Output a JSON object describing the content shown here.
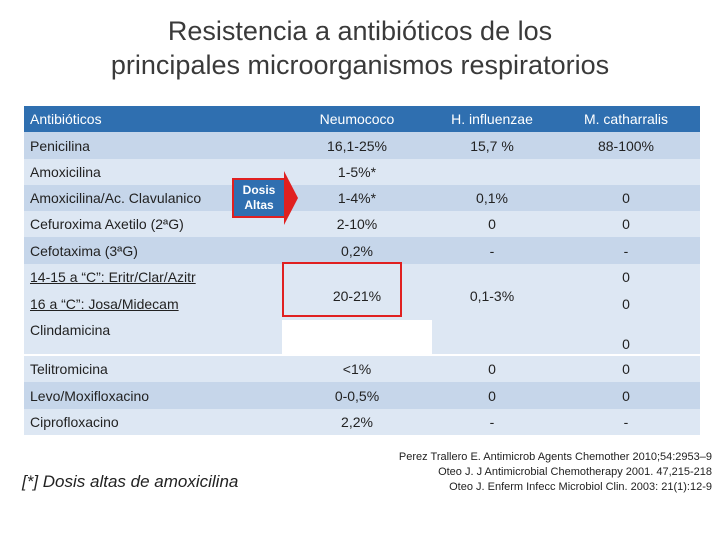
{
  "title": {
    "line1": "Resistencia a antibióticos de los",
    "line2": "principales microorganismos respiratorios"
  },
  "table": {
    "headers": [
      "Antibióticos",
      "Neumococo",
      "H. influenzae",
      "M. catharralis"
    ],
    "rows": {
      "penicilina": [
        "Penicilina",
        "16,1-25%",
        "15,7 %",
        "88-100%"
      ],
      "amoxicilina": [
        "Amoxicilina",
        "1-5%*"
      ],
      "amoxiclav": [
        "Amoxicilina/Ac. Clavulanico",
        "1-4%*",
        "0,1%",
        "0"
      ],
      "cefuroxima": [
        "Cefuroxima Axetilo (2ªG)",
        "2-10%",
        "0",
        "0"
      ],
      "cefotaxima": [
        "Cefotaxima (3ªG)",
        "0,2%",
        "-",
        "-"
      ],
      "macro14": [
        "14-15 a “C”: Eritr/Clar/Azitr",
        "0"
      ],
      "macro16": [
        "16 a “C”: Josa/Midecam",
        "0"
      ],
      "macro_shared": [
        "20-21%",
        "0,1-3%"
      ],
      "clindamicina": [
        "Clindamicina",
        "0"
      ],
      "telitromicina": [
        "Telitromicina",
        "<1%",
        "0",
        "0"
      ],
      "levo": [
        "Levo/Moxifloxacino",
        "0-0,5%",
        "0",
        "0"
      ],
      "cipro": [
        "Ciprofloxacino",
        "2,2%",
        "-",
        "-"
      ]
    },
    "dosis_label_1": "Dosis",
    "dosis_label_2": "Altas"
  },
  "footnote": "[*] Dosis altas de amoxicilina",
  "references": [
    "Perez Trallero E. Antimicrob Agents Chemother 2010;54:2953–9",
    "Oteo J. J Antimicrobial Chemotherapy 2001. 47,215-218",
    "Oteo J. Enferm Infecc Microbiol Clin. 2003: 21(1):12-9"
  ],
  "colors": {
    "header": "#2f6fb0",
    "light": "#dde7f3",
    "mid": "#c6d6ea",
    "highlight": "#e02020"
  }
}
